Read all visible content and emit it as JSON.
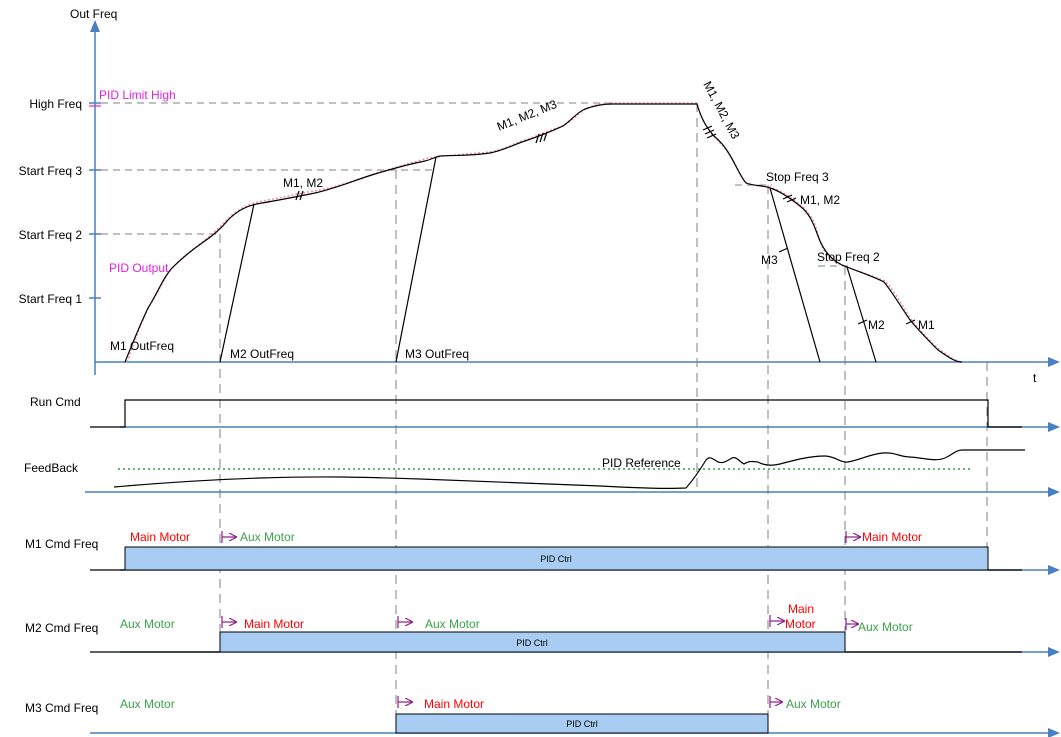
{
  "colors": {
    "axis": "#4a7fc1",
    "pid_bar_fill": "#a9cdf2",
    "pid_bar_stroke": "#000000",
    "magenta": "#e020e0",
    "red": "#ff0000",
    "green": "#3aa14a",
    "purple": "#8b1a8b",
    "dotted_green": "#2e9e4f",
    "dashed_gray": "#808080"
  },
  "freq_panel": {
    "y_axis_title": "Out Freq",
    "x_axis_title": "t",
    "y_ticks": [
      "High Freq",
      "Start Freq 3",
      "Start Freq 2",
      "Start Freq 1"
    ],
    "pid_limit_high": "PID Limit High",
    "pid_output": "PID Output",
    "m1_outfreq": "M1 OutFreq",
    "m2_outfreq": "M2 OutFreq",
    "m3_outfreq": "M3 OutFreq",
    "ramp_m1_m2": "M1, M2",
    "ramp_m1_m2_m3": "M1, M2, M3",
    "ramp_down_m1_m2_m3": "M1, M2, M3",
    "stop_freq_3": "Stop Freq 3",
    "stop_freq_2": "Stop Freq 2",
    "decel_m1_m2": "M1, M2",
    "decel_m3": "M3",
    "decel_m2": "M2",
    "decel_m1": "M1"
  },
  "run_cmd": {
    "label": "Run Cmd"
  },
  "feedback": {
    "label": "FeedBack",
    "pid_reference": "PID Reference"
  },
  "m1_cmd": {
    "label": "M1 Cmd Freq",
    "main_motor_1": "Main Motor",
    "aux_motor": "Aux Motor",
    "main_motor_2": "Main Motor",
    "bar": "PID Ctrl"
  },
  "m2_cmd": {
    "label": "M2 Cmd Freq",
    "aux_motor_1": "Aux Motor",
    "main_motor": "Main Motor",
    "aux_motor_2": "Aux Motor",
    "main_motor_stack_1": "Main",
    "main_motor_stack_2": "Motor",
    "aux_motor_3": "Aux Motor",
    "bar": "PID Ctrl"
  },
  "m3_cmd": {
    "label": "M3 Cmd Freq",
    "aux_motor_1": "Aux Motor",
    "main_motor": "Main Motor",
    "aux_motor_2": "Aux Motor",
    "bar": "PID Ctrl"
  }
}
